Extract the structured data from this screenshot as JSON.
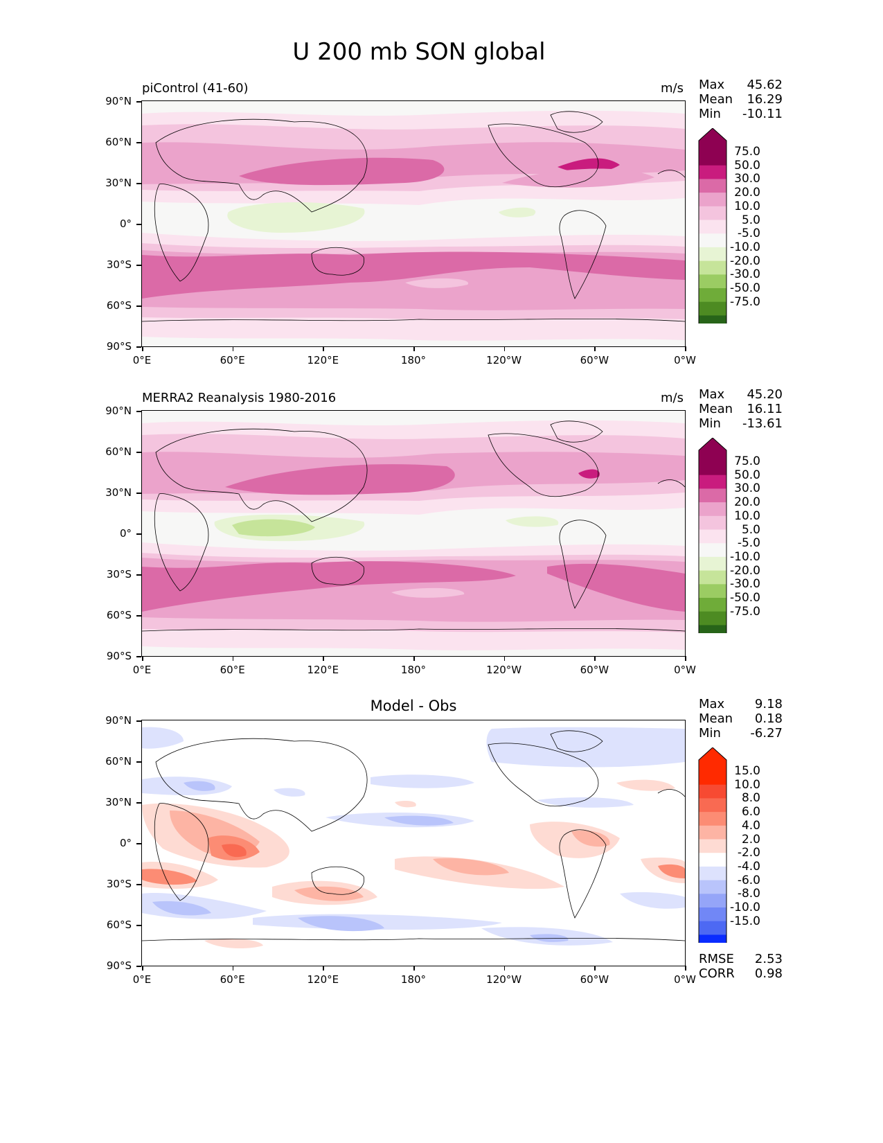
{
  "figure": {
    "title": "U 200 mb SON global"
  },
  "lat_ticks": [
    "90°N",
    "60°N",
    "30°N",
    "0°",
    "30°S",
    "60°S",
    "90°S"
  ],
  "lon_ticks": [
    "0°E",
    "60°E",
    "120°E",
    "180°",
    "120°W",
    "60°W",
    "0°W"
  ],
  "stat_names": {
    "max": "Max",
    "mean": "Mean",
    "min": "Min",
    "rmse": "RMSE",
    "corr": "CORR"
  },
  "colors": {
    "wind_positive": [
      "#fbe3ef",
      "#f4c4de",
      "#eba3cb",
      "#db6aa7",
      "#c91c7e",
      "#8e0152"
    ],
    "wind_neutral": "#f7f7f6",
    "wind_negative": [
      "#e7f4d4",
      "#c6e49a",
      "#9bcc63",
      "#6fac39",
      "#4d8b22",
      "#276419"
    ],
    "diff_positive": [
      "#fedbd3",
      "#fdb4a4",
      "#fc8c74",
      "#f96a52",
      "#f74a32",
      "#ff2a00"
    ],
    "diff_neutral": "#ffffff",
    "diff_negative": [
      "#dde2fd",
      "#b9c4fb",
      "#95a5f8",
      "#7187f6",
      "#4d69f3",
      "#0a2cff"
    ]
  },
  "panels": [
    {
      "id": "model",
      "title": "piControl (41-60)",
      "units": "m/s",
      "stats": {
        "max": "45.62",
        "mean": "16.29",
        "min": "-10.11"
      },
      "colorbar": {
        "labels": [
          "75.0",
          "50.0",
          "30.0",
          "20.0",
          "10.0",
          "5.0",
          "-5.0",
          "-10.0",
          "-20.0",
          "-30.0",
          "-50.0",
          "-75.0"
        ]
      }
    },
    {
      "id": "obs",
      "title": "MERRA2 Reanalysis 1980-2016",
      "units": "m/s",
      "stats": {
        "max": "45.20",
        "mean": "16.11",
        "min": "-13.61"
      },
      "colorbar": {
        "labels": [
          "75.0",
          "50.0",
          "30.0",
          "20.0",
          "10.0",
          "5.0",
          "-5.0",
          "-10.0",
          "-20.0",
          "-30.0",
          "-50.0",
          "-75.0"
        ]
      }
    },
    {
      "id": "diff",
      "title": "Model - Obs",
      "units": "",
      "stats": {
        "max": "9.18",
        "mean": "0.18",
        "min": "-6.27",
        "rmse": "2.53",
        "corr": "0.98"
      },
      "colorbar": {
        "labels": [
          "15.0",
          "10.0",
          "8.0",
          "6.0",
          "4.0",
          "2.0",
          "-2.0",
          "-4.0",
          "-6.0",
          "-8.0",
          "-10.0",
          "-15.0"
        ]
      }
    }
  ]
}
